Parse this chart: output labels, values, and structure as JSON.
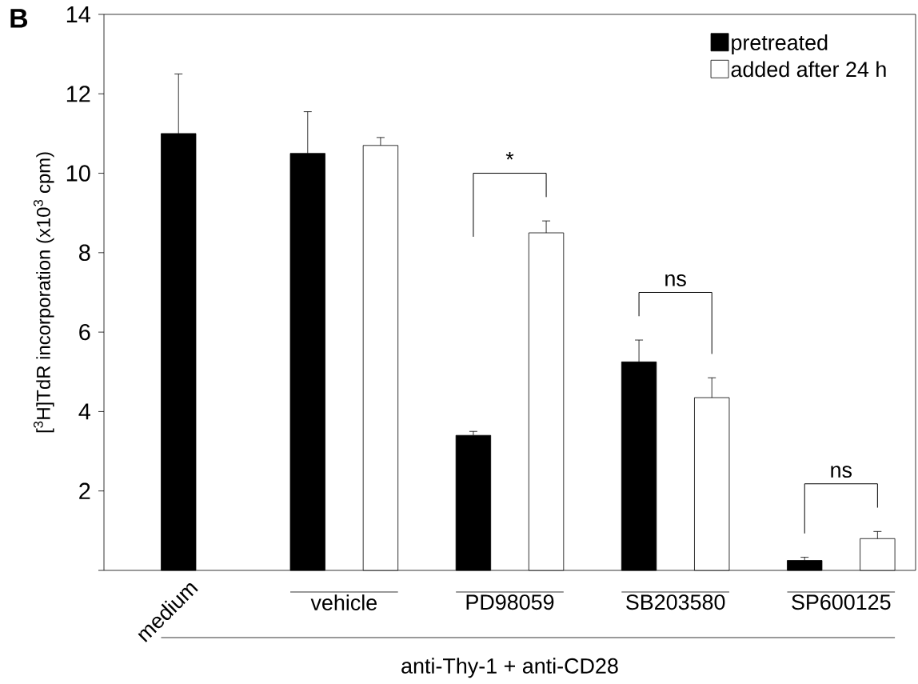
{
  "chart_data": {
    "type": "bar",
    "ylabel": "[$^{3}$H]TdR incorporation (x10$^{3}$ cpm)",
    "xlabel": "anti-Thy-1 + anti-CD28",
    "categories": [
      "medium",
      "vehicle",
      "PD98059",
      "SB203580",
      "SP600125"
    ],
    "series": [
      {
        "name": "pretreated",
        "color": "#000000",
        "values": [
          11.0,
          10.5,
          3.4,
          5.25,
          0.25
        ],
        "errors": [
          1.5,
          1.05,
          0.1,
          0.55,
          0.08
        ]
      },
      {
        "name": "added after 24 h",
        "color": "#ffffff",
        "values": [
          null,
          10.7,
          8.5,
          4.35,
          0.8
        ],
        "errors": [
          null,
          0.2,
          0.3,
          0.5,
          0.18
        ]
      }
    ],
    "ylim": [
      0,
      14
    ],
    "yticks": [
      {
        "value": 0,
        "label": null
      },
      2,
      4,
      6,
      8,
      10,
      12,
      14
    ],
    "legend": "top right",
    "grid": false,
    "annotations": [
      "B",
      "*",
      "ns",
      "ns"
    ]
  }
}
